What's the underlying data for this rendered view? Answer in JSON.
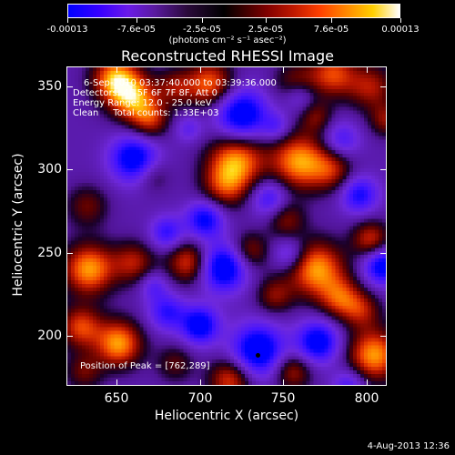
{
  "chart_data": {
    "type": "heatmap",
    "title": "Reconstructed RHESSI Image",
    "xlabel": "Heliocentric X (arcsec)",
    "ylabel": "Heliocentric Y (arcsec)",
    "xlim": [
      620,
      812
    ],
    "ylim": [
      170,
      362
    ],
    "x_ticks": [
      {
        "value": 650,
        "label": "650"
      },
      {
        "value": 700,
        "label": "700"
      },
      {
        "value": 750,
        "label": "750"
      },
      {
        "value": 800,
        "label": "800"
      }
    ],
    "y_ticks": [
      {
        "value": 200,
        "label": "200"
      },
      {
        "value": 250,
        "label": "250"
      },
      {
        "value": 300,
        "label": "300"
      },
      {
        "value": 350,
        "label": "350"
      }
    ],
    "colorbar": {
      "min": -0.00013,
      "max": 0.00013,
      "unit_label": "(photons cm⁻² s⁻¹ asec⁻²)",
      "ticks": [
        {
          "value": -0.00013,
          "label": "-0.00013"
        },
        {
          "value": -7.6e-05,
          "label": "-7.6e-05"
        },
        {
          "value": -2.5e-05,
          "label": "-2.5e-05"
        },
        {
          "value": 2.5e-05,
          "label": "2.5e-05"
        },
        {
          "value": 7.6e-05,
          "label": "7.6e-05"
        },
        {
          "value": 0.00013,
          "label": "0.00013"
        }
      ]
    },
    "annotations": [
      "6-Sep-2010 03:37:40.000 to 03:39:36.000",
      "Detectors: 4F 5F 6F 7F 8F, Att 0",
      "Energy Range: 12.0 - 25.0 keV",
      "Clean     Total counts: 1.33E+03"
    ],
    "peak": {
      "label": "Position of Peak = [762,289]",
      "x": 734,
      "y": 189
    },
    "blobs": [
      {
        "x": 649,
        "y": 355,
        "s": 10,
        "v": 1.0
      },
      {
        "x": 660,
        "y": 343,
        "s": 10,
        "v": 0.9
      },
      {
        "x": 670,
        "y": 330,
        "s": 8,
        "v": 0.6
      },
      {
        "x": 685,
        "y": 350,
        "s": 8,
        "v": 0.5
      },
      {
        "x": 706,
        "y": 352,
        "s": 10,
        "v": 0.85
      },
      {
        "x": 758,
        "y": 352,
        "s": 9,
        "v": 0.55
      },
      {
        "x": 780,
        "y": 358,
        "s": 10,
        "v": 0.75
      },
      {
        "x": 803,
        "y": 350,
        "s": 10,
        "v": 0.6
      },
      {
        "x": 722,
        "y": 306,
        "s": 12,
        "v": 0.95
      },
      {
        "x": 715,
        "y": 290,
        "s": 10,
        "v": 0.6
      },
      {
        "x": 760,
        "y": 305,
        "s": 12,
        "v": 1.0
      },
      {
        "x": 780,
        "y": 300,
        "s": 9,
        "v": 0.55
      },
      {
        "x": 632,
        "y": 278,
        "s": 9,
        "v": 0.45
      },
      {
        "x": 672,
        "y": 296,
        "s": 7,
        "v": 0.3
      },
      {
        "x": 633,
        "y": 240,
        "s": 11,
        "v": 1.0
      },
      {
        "x": 660,
        "y": 244,
        "s": 9,
        "v": 0.6
      },
      {
        "x": 693,
        "y": 244,
        "s": 9,
        "v": 0.75
      },
      {
        "x": 730,
        "y": 251,
        "s": 8,
        "v": 0.55
      },
      {
        "x": 752,
        "y": 270,
        "s": 8,
        "v": 0.5
      },
      {
        "x": 770,
        "y": 240,
        "s": 12,
        "v": 1.0
      },
      {
        "x": 785,
        "y": 222,
        "s": 9,
        "v": 0.7
      },
      {
        "x": 745,
        "y": 224,
        "s": 8,
        "v": 0.5
      },
      {
        "x": 803,
        "y": 258,
        "s": 8,
        "v": 0.7
      },
      {
        "x": 651,
        "y": 195,
        "s": 10,
        "v": 1.0
      },
      {
        "x": 628,
        "y": 205,
        "s": 9,
        "v": 0.75
      },
      {
        "x": 630,
        "y": 178,
        "s": 8,
        "v": 0.45
      },
      {
        "x": 685,
        "y": 183,
        "s": 8,
        "v": 0.4
      },
      {
        "x": 718,
        "y": 173,
        "s": 9,
        "v": 0.75
      },
      {
        "x": 756,
        "y": 178,
        "s": 8,
        "v": 0.6
      },
      {
        "x": 805,
        "y": 188,
        "s": 11,
        "v": 1.0
      },
      {
        "x": 798,
        "y": 215,
        "s": 8,
        "v": 0.5
      },
      {
        "x": 812,
        "y": 330,
        "s": 7,
        "v": 0.5
      },
      {
        "x": 770,
        "y": 332,
        "s": 7,
        "v": 0.45
      },
      {
        "x": 660,
        "y": 307,
        "s": 10,
        "v": -0.9
      },
      {
        "x": 725,
        "y": 333,
        "s": 11,
        "v": -1.0
      },
      {
        "x": 760,
        "y": 345,
        "s": 7,
        "v": -0.5
      },
      {
        "x": 785,
        "y": 318,
        "s": 8,
        "v": -0.5
      },
      {
        "x": 796,
        "y": 285,
        "s": 8,
        "v": -0.7
      },
      {
        "x": 742,
        "y": 283,
        "s": 8,
        "v": -0.6
      },
      {
        "x": 703,
        "y": 270,
        "s": 8,
        "v": -0.8
      },
      {
        "x": 680,
        "y": 262,
        "s": 7,
        "v": -0.6
      },
      {
        "x": 714,
        "y": 241,
        "s": 10,
        "v": -1.0
      },
      {
        "x": 754,
        "y": 249,
        "s": 7,
        "v": -0.5
      },
      {
        "x": 810,
        "y": 242,
        "s": 8,
        "v": -0.9
      },
      {
        "x": 680,
        "y": 214,
        "s": 8,
        "v": -0.6
      },
      {
        "x": 700,
        "y": 206,
        "s": 8,
        "v": -0.9
      },
      {
        "x": 735,
        "y": 191,
        "s": 11,
        "v": -1.0
      },
      {
        "x": 771,
        "y": 196,
        "s": 9,
        "v": -0.9
      },
      {
        "x": 790,
        "y": 170,
        "s": 7,
        "v": -0.5
      },
      {
        "x": 672,
        "y": 230,
        "s": 6,
        "v": -0.4
      },
      {
        "x": 746,
        "y": 326,
        "s": 6,
        "v": -0.4
      },
      {
        "x": 693,
        "y": 325,
        "s": 6,
        "v": -0.35
      }
    ]
  },
  "footer": {
    "timestamp": "4-Aug-2013 12:36"
  }
}
